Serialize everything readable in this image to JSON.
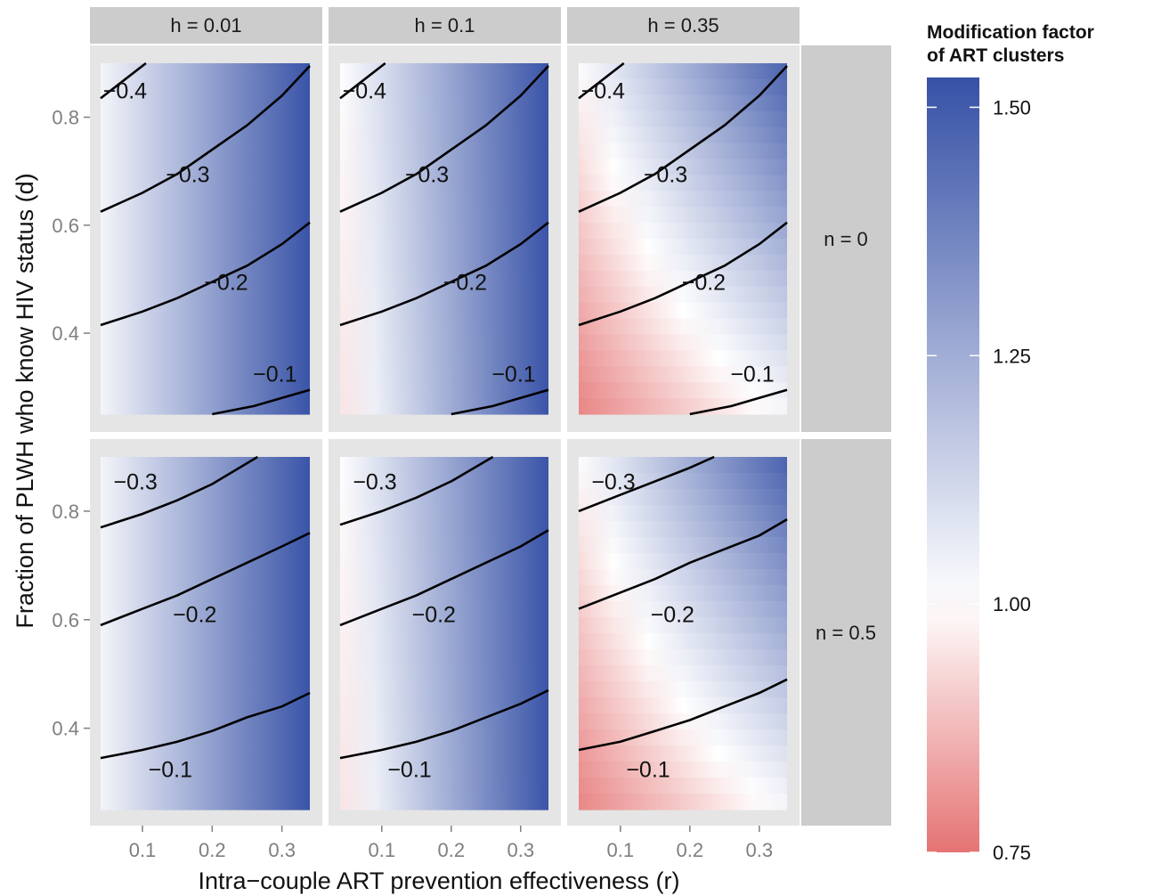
{
  "chart_data": {
    "type": "heatmap",
    "xlabel": "Intra−couple ART prevention effectiveness (r)",
    "ylabel": "Fraction of PLWH who know HIV status (d)",
    "xlim": [
      0.04,
      0.34
    ],
    "ylim": [
      0.25,
      0.9
    ],
    "x_ticks": [
      0.1,
      0.2,
      0.3
    ],
    "x_tick_labels": [
      "0.1",
      "0.2",
      "0.3"
    ],
    "y_ticks": [
      0.4,
      0.6,
      0.8
    ],
    "y_tick_labels": [
      "0.4",
      "0.6",
      "0.8"
    ],
    "col_facets": [
      "h = 0.01",
      "h = 0.1",
      "h = 0.35"
    ],
    "row_facets": [
      "n = 0",
      "n = 0.5"
    ],
    "legend": {
      "title_lines": [
        "Modification factor",
        " of ART clusters"
      ],
      "range": [
        0.75,
        1.53
      ],
      "ticks": [
        0.75,
        1.0,
        1.25,
        1.5
      ],
      "tick_labels": [
        "0.75",
        "1.00",
        "1.25",
        "1.50"
      ],
      "low_color": "#e57373",
      "mid_color": "#ffffff",
      "high_color": "#3651a6",
      "placement": "right"
    },
    "panels": [
      {
        "row": 0,
        "col": 0,
        "fill": {
          "corners": {
            "x0y0": 1.03,
            "x1y0": 1.52,
            "x0y1": 1.03,
            "x1y1": 1.52
          }
        },
        "contours": [
          {
            "label": "−0.4",
            "points": [
              [
                0.04,
                0.835
              ],
              [
                0.07,
                0.865
              ],
              [
                0.105,
                0.9
              ]
            ],
            "label_at": [
              0.075,
              0.85
            ]
          },
          {
            "label": "−0.3",
            "points": [
              [
                0.04,
                0.625
              ],
              [
                0.1,
                0.66
              ],
              [
                0.15,
                0.695
              ],
              [
                0.2,
                0.74
              ],
              [
                0.25,
                0.785
              ],
              [
                0.3,
                0.84
              ],
              [
                0.34,
                0.895
              ]
            ],
            "label_at": [
              0.165,
              0.695
            ]
          },
          {
            "label": "−0.2",
            "points": [
              [
                0.04,
                0.415
              ],
              [
                0.1,
                0.44
              ],
              [
                0.15,
                0.465
              ],
              [
                0.2,
                0.495
              ],
              [
                0.25,
                0.525
              ],
              [
                0.3,
                0.565
              ],
              [
                0.34,
                0.605
              ]
            ],
            "label_at": [
              0.22,
              0.495
            ]
          },
          {
            "label": "−0.1",
            "points": [
              [
                0.2,
                0.25
              ],
              [
                0.26,
                0.265
              ],
              [
                0.3,
                0.28
              ],
              [
                0.34,
                0.295
              ]
            ],
            "label_at": [
              0.29,
              0.325
            ]
          }
        ]
      },
      {
        "row": 0,
        "col": 1,
        "fill": {
          "corners": {
            "x0y0": 0.95,
            "x1y0": 1.52,
            "x0y1": 1.0,
            "x1y1": 1.52
          }
        },
        "contours": [
          {
            "label": "−0.4",
            "points": [
              [
                0.04,
                0.835
              ],
              [
                0.07,
                0.865
              ],
              [
                0.105,
                0.9
              ]
            ],
            "label_at": [
              0.075,
              0.85
            ]
          },
          {
            "label": "−0.3",
            "points": [
              [
                0.04,
                0.625
              ],
              [
                0.1,
                0.66
              ],
              [
                0.15,
                0.695
              ],
              [
                0.2,
                0.74
              ],
              [
                0.25,
                0.785
              ],
              [
                0.3,
                0.84
              ],
              [
                0.34,
                0.895
              ]
            ],
            "label_at": [
              0.165,
              0.695
            ]
          },
          {
            "label": "−0.2",
            "points": [
              [
                0.04,
                0.415
              ],
              [
                0.1,
                0.44
              ],
              [
                0.15,
                0.465
              ],
              [
                0.2,
                0.495
              ],
              [
                0.25,
                0.525
              ],
              [
                0.3,
                0.565
              ],
              [
                0.34,
                0.605
              ]
            ],
            "label_at": [
              0.22,
              0.495
            ]
          },
          {
            "label": "−0.1",
            "points": [
              [
                0.2,
                0.25
              ],
              [
                0.26,
                0.265
              ],
              [
                0.3,
                0.28
              ],
              [
                0.34,
                0.295
              ]
            ],
            "label_at": [
              0.29,
              0.325
            ]
          }
        ]
      },
      {
        "row": 0,
        "col": 2,
        "fill": {
          "corners": {
            "x0y0": 0.78,
            "x1y0": 1.02,
            "x0y1": 1.0,
            "x1y1": 1.48
          }
        },
        "contours": [
          {
            "label": "−0.4",
            "points": [
              [
                0.04,
                0.835
              ],
              [
                0.07,
                0.865
              ],
              [
                0.105,
                0.9
              ]
            ],
            "label_at": [
              0.075,
              0.85
            ]
          },
          {
            "label": "−0.3",
            "points": [
              [
                0.04,
                0.625
              ],
              [
                0.1,
                0.66
              ],
              [
                0.15,
                0.695
              ],
              [
                0.2,
                0.74
              ],
              [
                0.25,
                0.785
              ],
              [
                0.3,
                0.84
              ],
              [
                0.34,
                0.895
              ]
            ],
            "label_at": [
              0.165,
              0.695
            ]
          },
          {
            "label": "−0.2",
            "points": [
              [
                0.04,
                0.415
              ],
              [
                0.1,
                0.44
              ],
              [
                0.15,
                0.465
              ],
              [
                0.2,
                0.495
              ],
              [
                0.25,
                0.525
              ],
              [
                0.3,
                0.565
              ],
              [
                0.34,
                0.605
              ]
            ],
            "label_at": [
              0.22,
              0.495
            ]
          },
          {
            "label": "−0.1",
            "points": [
              [
                0.2,
                0.25
              ],
              [
                0.26,
                0.265
              ],
              [
                0.3,
                0.28
              ],
              [
                0.34,
                0.295
              ]
            ],
            "label_at": [
              0.29,
              0.325
            ]
          }
        ]
      },
      {
        "row": 1,
        "col": 0,
        "fill": {
          "corners": {
            "x0y0": 1.03,
            "x1y0": 1.52,
            "x0y1": 1.03,
            "x1y1": 1.52
          }
        },
        "contours": [
          {
            "label": "−0.3",
            "points": [
              [
                0.04,
                0.77
              ],
              [
                0.1,
                0.795
              ],
              [
                0.15,
                0.82
              ],
              [
                0.2,
                0.85
              ],
              [
                0.265,
                0.9
              ]
            ],
            "label_at": [
              0.09,
              0.855
            ]
          },
          {
            "label": "−0.2",
            "points": [
              [
                0.04,
                0.59
              ],
              [
                0.1,
                0.62
              ],
              [
                0.15,
                0.645
              ],
              [
                0.2,
                0.675
              ],
              [
                0.25,
                0.705
              ],
              [
                0.3,
                0.735
              ],
              [
                0.34,
                0.76
              ]
            ],
            "label_at": [
              0.175,
              0.61
            ]
          },
          {
            "label": "−0.1",
            "points": [
              [
                0.04,
                0.345
              ],
              [
                0.1,
                0.36
              ],
              [
                0.15,
                0.375
              ],
              [
                0.2,
                0.395
              ],
              [
                0.25,
                0.42
              ],
              [
                0.3,
                0.44
              ],
              [
                0.34,
                0.465
              ]
            ],
            "label_at": [
              0.14,
              0.325
            ]
          }
        ]
      },
      {
        "row": 1,
        "col": 1,
        "fill": {
          "corners": {
            "x0y0": 0.95,
            "x1y0": 1.52,
            "x0y1": 1.0,
            "x1y1": 1.52
          }
        },
        "contours": [
          {
            "label": "−0.3",
            "points": [
              [
                0.04,
                0.775
              ],
              [
                0.1,
                0.8
              ],
              [
                0.15,
                0.825
              ],
              [
                0.2,
                0.855
              ],
              [
                0.26,
                0.9
              ]
            ],
            "label_at": [
              0.09,
              0.855
            ]
          },
          {
            "label": "−0.2",
            "points": [
              [
                0.04,
                0.59
              ],
              [
                0.1,
                0.62
              ],
              [
                0.15,
                0.645
              ],
              [
                0.2,
                0.675
              ],
              [
                0.25,
                0.705
              ],
              [
                0.3,
                0.735
              ],
              [
                0.34,
                0.765
              ]
            ],
            "label_at": [
              0.175,
              0.61
            ]
          },
          {
            "label": "−0.1",
            "points": [
              [
                0.04,
                0.345
              ],
              [
                0.1,
                0.36
              ],
              [
                0.15,
                0.375
              ],
              [
                0.2,
                0.395
              ],
              [
                0.25,
                0.42
              ],
              [
                0.3,
                0.445
              ],
              [
                0.34,
                0.47
              ]
            ],
            "label_at": [
              0.14,
              0.325
            ]
          }
        ]
      },
      {
        "row": 1,
        "col": 2,
        "fill": {
          "corners": {
            "x0y0": 0.78,
            "x1y0": 1.02,
            "x0y1": 1.0,
            "x1y1": 1.48
          }
        },
        "contours": [
          {
            "label": "−0.3",
            "points": [
              [
                0.04,
                0.8
              ],
              [
                0.1,
                0.83
              ],
              [
                0.15,
                0.855
              ],
              [
                0.2,
                0.88
              ],
              [
                0.235,
                0.9
              ]
            ],
            "label_at": [
              0.09,
              0.855
            ]
          },
          {
            "label": "−0.2",
            "points": [
              [
                0.04,
                0.62
              ],
              [
                0.1,
                0.65
              ],
              [
                0.15,
                0.675
              ],
              [
                0.2,
                0.705
              ],
              [
                0.25,
                0.73
              ],
              [
                0.3,
                0.755
              ],
              [
                0.34,
                0.785
              ]
            ],
            "label_at": [
              0.175,
              0.61
            ]
          },
          {
            "label": "−0.1",
            "points": [
              [
                0.04,
                0.36
              ],
              [
                0.1,
                0.375
              ],
              [
                0.15,
                0.395
              ],
              [
                0.2,
                0.415
              ],
              [
                0.25,
                0.44
              ],
              [
                0.3,
                0.465
              ],
              [
                0.34,
                0.49
              ]
            ],
            "label_at": [
              0.14,
              0.325
            ]
          }
        ]
      }
    ]
  }
}
